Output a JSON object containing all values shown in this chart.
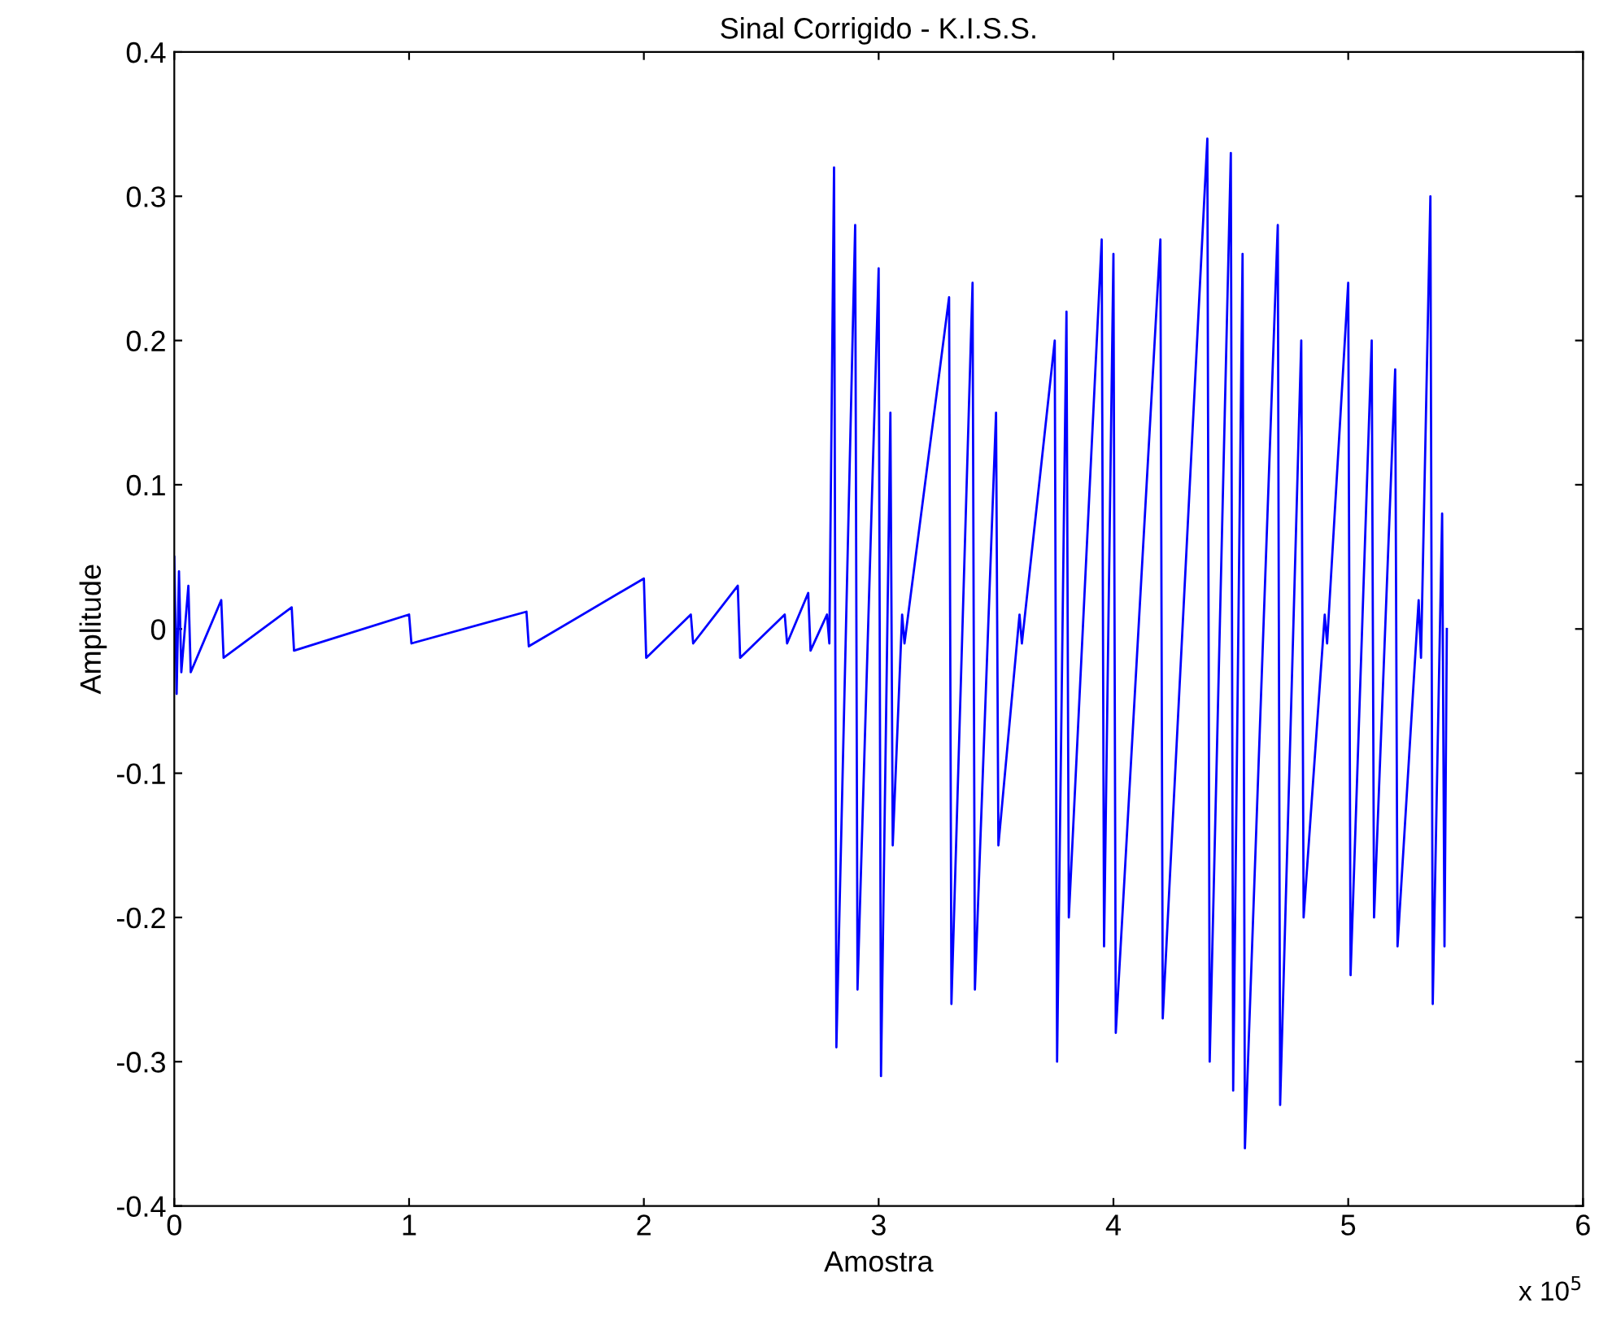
{
  "chart_data": {
    "type": "line",
    "title": "Sinal Corrigido - K.I.S.S.",
    "xlabel": "Amostra",
    "ylabel": "Amplitude",
    "annotations": [
      "x 10$^{5}$"
    ],
    "xlim": [
      0,
      6
    ],
    "ylim": [
      -0.4,
      0.4
    ],
    "xticks": [
      0,
      1,
      2,
      3,
      4,
      5,
      6
    ],
    "yticks": [
      -0.4,
      -0.3,
      -0.2,
      -0.1,
      0,
      0.1,
      0.2,
      0.3,
      0.4
    ],
    "grid": false,
    "marker": "none",
    "line_style": "solid",
    "series": [
      {
        "color": "#0000ff",
        "x": [
          0,
          0.01,
          0.02,
          0.03,
          0.06,
          0.07,
          0.2,
          0.21,
          0.5,
          0.51,
          1.0,
          1.01,
          1.5,
          1.51,
          2.0,
          2.01,
          2.2,
          2.21,
          2.4,
          2.41,
          2.6,
          2.61,
          2.7,
          2.71,
          2.78,
          2.79,
          2.81,
          2.82,
          2.9,
          2.91,
          3.0,
          3.01,
          3.05,
          3.06,
          3.1,
          3.11,
          3.3,
          3.31,
          3.4,
          3.41,
          3.5,
          3.51,
          3.6,
          3.61,
          3.75,
          3.76,
          3.8,
          3.81,
          3.95,
          3.96,
          4.0,
          4.01,
          4.2,
          4.21,
          4.4,
          4.41,
          4.5,
          4.51,
          4.55,
          4.56,
          4.7,
          4.71,
          4.8,
          4.81,
          4.9,
          4.91,
          5.0,
          5.01,
          5.1,
          5.11,
          5.2,
          5.21,
          5.3,
          5.31,
          5.35,
          5.36,
          5.4,
          5.41,
          5.42
        ],
        "values": [
          0.05,
          -0.045,
          0.04,
          -0.03,
          0.03,
          -0.03,
          0.02,
          -0.02,
          0.015,
          -0.015,
          0.01,
          -0.01,
          0.012,
          -0.012,
          0.035,
          -0.02,
          0.01,
          -0.01,
          0.03,
          -0.02,
          0.01,
          -0.01,
          0.025,
          -0.015,
          0.01,
          -0.01,
          0.32,
          -0.29,
          0.28,
          -0.25,
          0.25,
          -0.31,
          0.15,
          -0.15,
          0.01,
          -0.01,
          0.23,
          -0.26,
          0.24,
          -0.25,
          0.15,
          -0.15,
          0.01,
          -0.01,
          0.2,
          -0.3,
          0.22,
          -0.2,
          0.27,
          -0.22,
          0.26,
          -0.28,
          0.27,
          -0.27,
          0.34,
          -0.3,
          0.33,
          -0.32,
          0.26,
          -0.36,
          0.28,
          -0.33,
          0.2,
          -0.2,
          0.01,
          -0.01,
          0.24,
          -0.24,
          0.2,
          -0.2,
          0.18,
          -0.22,
          0.02,
          -0.02,
          0.3,
          -0.26,
          0.08,
          -0.22,
          0
        ]
      }
    ]
  }
}
